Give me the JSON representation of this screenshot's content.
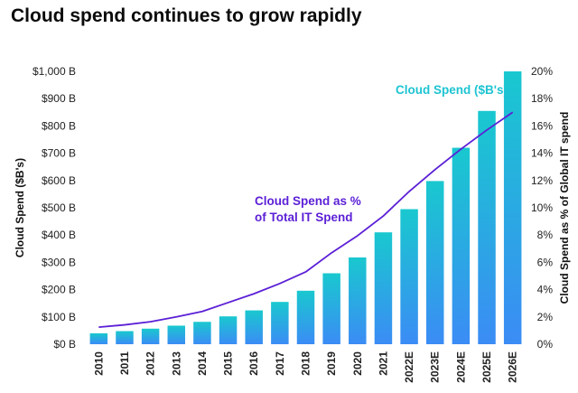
{
  "chart_data": {
    "type": "bar",
    "title": "Cloud spend continues to grow rapidly",
    "categories": [
      "2010",
      "2011",
      "2012",
      "2013",
      "2014",
      "2015",
      "2016",
      "2017",
      "2018",
      "2019",
      "2020",
      "2021",
      "2022E",
      "2023E",
      "2024E",
      "2025E",
      "2026E"
    ],
    "series": [
      {
        "name": "Cloud Spend ($B's)",
        "type": "bar",
        "axis": "left",
        "values": [
          40,
          48,
          57,
          68,
          82,
          102,
          124,
          155,
          196,
          260,
          318,
          410,
          495,
          598,
          720,
          855,
          1000
        ]
      },
      {
        "name": "Cloud Spend as % of Total IT Spend",
        "type": "line",
        "axis": "right",
        "values": [
          1.25,
          1.42,
          1.65,
          2.0,
          2.4,
          3.05,
          3.7,
          4.45,
          5.3,
          6.7,
          7.95,
          9.4,
          11.2,
          12.8,
          14.3,
          15.7,
          17.0
        ]
      }
    ],
    "ylabel": "Cloud Spend ($B's)",
    "ylabel_right": "Cloud Spend as % of Global IT spend",
    "ylim": [
      0,
      1000
    ],
    "ylim_right": [
      0,
      20
    ],
    "yticks": [
      "$0 B",
      "$100 B",
      "$200 B",
      "$300 B",
      "$400 B",
      "$500 B",
      "$600 B",
      "$700 B",
      "$800 B",
      "$900 B",
      "$1,000 B"
    ],
    "yticks_right": [
      "0%",
      "2%",
      "4%",
      "6%",
      "8%",
      "10%",
      "12%",
      "14%",
      "16%",
      "18%",
      "20%"
    ],
    "annotations": {
      "bar_label": "Cloud Spend ($B's)",
      "line_label_1": "Cloud Spend as %",
      "line_label_2": "of Total IT Spend"
    },
    "colors": {
      "bar_top": "#19c8cf",
      "bar_bottom": "#3b8cf5",
      "line": "#5b1fd6",
      "bar_label": "#1dc4d2"
    },
    "grid": false
  }
}
